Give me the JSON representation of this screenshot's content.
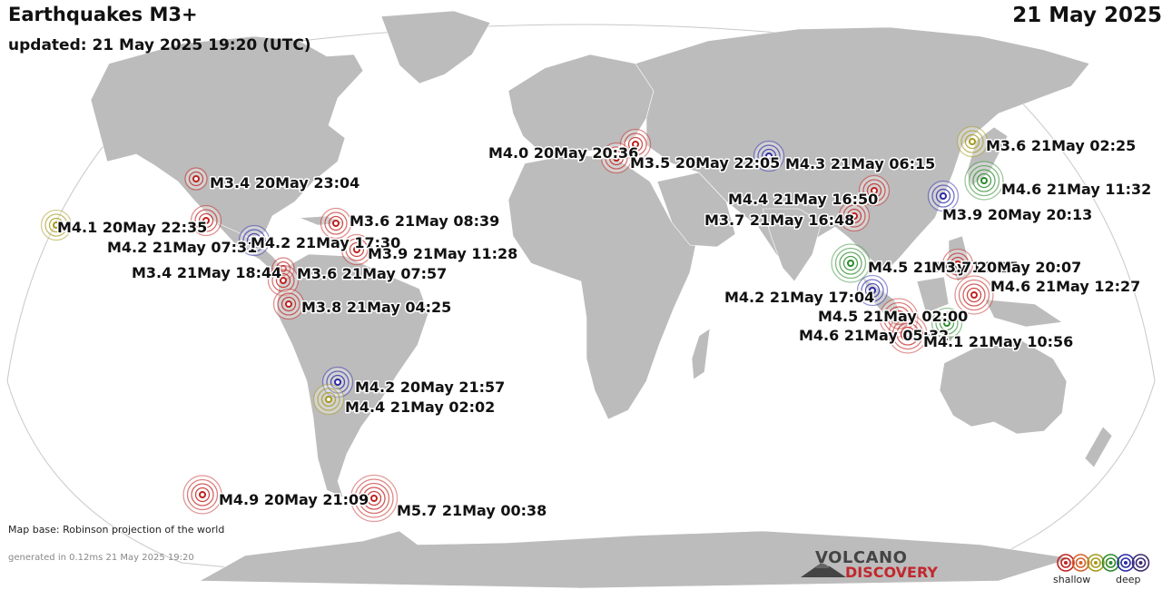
{
  "header": {
    "title": "Earthquakes M3+",
    "updated": "updated: 21 May 2025 19:20 (UTC)",
    "date": "21 May 2025"
  },
  "footer": {
    "map_base": "Map base: Robinson projection of the world",
    "generated": "generated in 0.12ms 21 May 2025 19:20"
  },
  "logo": {
    "top": "VOLCANO",
    "bottom": "DISCOVERY"
  },
  "legend": {
    "shallow": "shallow",
    "deep": "deep",
    "colors": [
      "#c0221f",
      "#d4602a",
      "#a59a1a",
      "#2a8a2a",
      "#2a2aa8",
      "#3b2a6a"
    ]
  },
  "quakes": [
    {
      "label": "M3.4 20May 23:04",
      "mag": 3.4,
      "depth": "shallow"
    },
    {
      "label": "M4.1 20May 22:35",
      "mag": 4.1,
      "depth": "mid"
    },
    {
      "label": "M4.2 21May 07:31",
      "mag": 4.2,
      "depth": "shallow"
    },
    {
      "label": "M4.2 21May 17:30",
      "mag": 4.2,
      "depth": "deep"
    },
    {
      "label": "M3.6 21May 08:39",
      "mag": 3.6,
      "depth": "shallow"
    },
    {
      "label": "M3.9 21May 11:28",
      "mag": 3.9,
      "depth": "shallow"
    },
    {
      "label": "M3.4 21May 18:44",
      "mag": 3.4,
      "depth": "shallow"
    },
    {
      "label": "M3.6 21May 07:57",
      "mag": 3.6,
      "depth": "shallow"
    },
    {
      "label": "M3.8 21May 04:25",
      "mag": 3.8,
      "depth": "shallow"
    },
    {
      "label": "M4.2 20May 21:57",
      "mag": 4.2,
      "depth": "deep"
    },
    {
      "label": "M4.4 21May 02:02",
      "mag": 4.4,
      "depth": "mid"
    },
    {
      "label": "M4.9 20May 21:09",
      "mag": 4.9,
      "depth": "shallow"
    },
    {
      "label": "M5.7 21May 00:38",
      "mag": 5.7,
      "depth": "shallow"
    },
    {
      "label": "M4.0 20May 20:36",
      "mag": 4.0,
      "depth": "shallow"
    },
    {
      "label": "M3.5 20May 22:05",
      "mag": 3.5,
      "depth": "shallow"
    },
    {
      "label": "M4.3 21May 06:15",
      "mag": 4.3,
      "depth": "deep"
    },
    {
      "label": "M4.4 21May 16:50",
      "mag": 4.4,
      "depth": "shallow"
    },
    {
      "label": "M3.7 21May 16:48",
      "mag": 3.7,
      "depth": "shallow"
    },
    {
      "label": "M3.6 21May 02:25",
      "mag": 3.6,
      "depth": "mid"
    },
    {
      "label": "M4.6 21May 11:32",
      "mag": 4.6,
      "depth": "green"
    },
    {
      "label": "M3.9 20May 20:13",
      "mag": 3.9,
      "depth": "deep"
    },
    {
      "label": "M4.5 21May 14:27",
      "mag": 4.5,
      "depth": "green"
    },
    {
      "label": "M3.7 20May 20:07",
      "mag": 3.7,
      "depth": "shallow"
    },
    {
      "label": "M4.6 21May 12:27",
      "mag": 4.6,
      "depth": "shallow"
    },
    {
      "label": "M4.2 21May 17:04",
      "mag": 4.2,
      "depth": "deep"
    },
    {
      "label": "M4.5 21May 02:00",
      "mag": 4.5,
      "depth": "shallow"
    },
    {
      "label": "M4.6 21May 05:32",
      "mag": 4.6,
      "depth": "shallow"
    },
    {
      "label": "M4.1 21May 10:56",
      "mag": 4.1,
      "depth": "green"
    }
  ]
}
